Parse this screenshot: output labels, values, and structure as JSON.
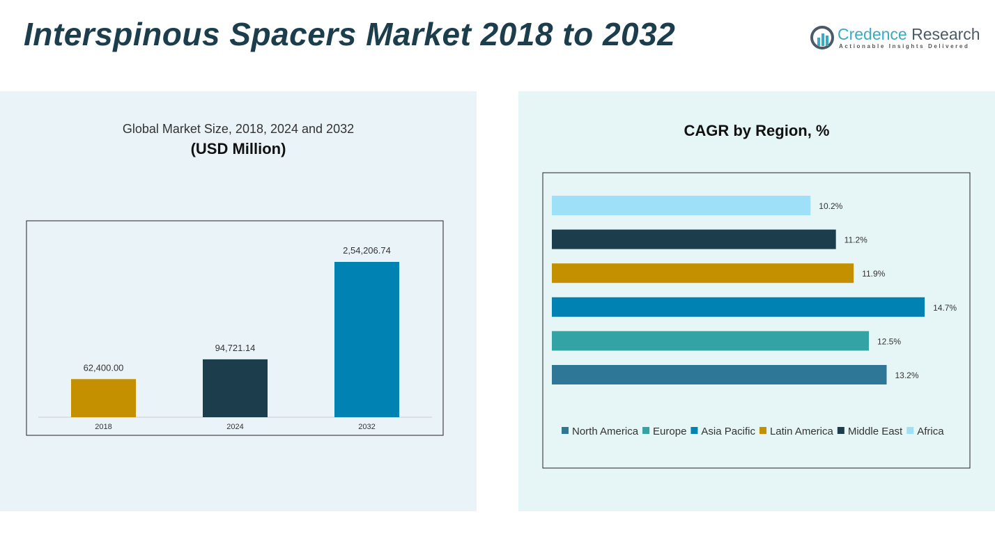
{
  "header": {
    "title": "Interspinous Spacers Market 2018 to 2032"
  },
  "logo": {
    "name_a": "Credence",
    "name_b": " Research",
    "tagline": "Actionable Insights Delivered"
  },
  "chart_data": [
    {
      "type": "bar",
      "title": "Global Market Size, 2018, 2024 and 2032",
      "subtitle": "(USD Million)",
      "categories": [
        "2018",
        "2024",
        "2032"
      ],
      "values": [
        62400.0,
        94721.14,
        254206.74
      ],
      "labels": [
        "62,400.00",
        "94,721.14",
        "2,54,206.74"
      ],
      "colors": [
        "#c49000",
        "#1b3d4c",
        "#0083b3"
      ]
    },
    {
      "type": "bar",
      "orientation": "horizontal",
      "title": "CAGR by Region, %",
      "categories": [
        "North America",
        "Europe",
        "Asia Pacific",
        "Latin America",
        "Middle East",
        "Africa"
      ],
      "values": [
        13.2,
        12.5,
        14.7,
        11.9,
        11.2,
        10.2
      ],
      "labels": [
        "13.2%",
        "12.5%",
        "14.7%",
        "11.9%",
        "11.2%",
        "10.2%"
      ],
      "colors": [
        "#2f7797",
        "#33a3a3",
        "#0083b3",
        "#c49000",
        "#1b3d4c",
        "#9ee0f7"
      ],
      "legend": "bottom"
    }
  ]
}
